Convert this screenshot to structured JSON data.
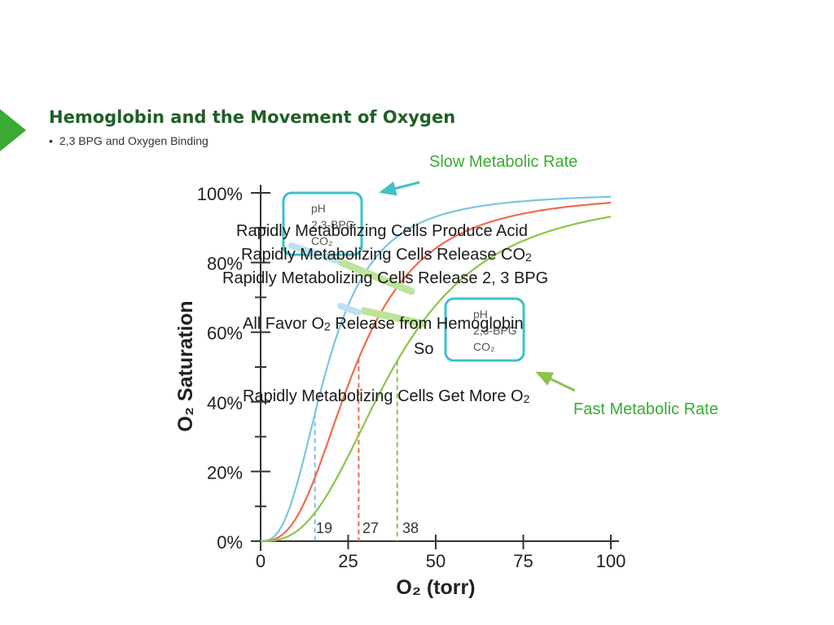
{
  "slide": {
    "title": "Hemoglobin and the Movement of Oxygen",
    "bullet": "2,3 BPG and Oxygen Binding",
    "overlay": {
      "slow_label": "Slow Metabolic Rate",
      "fast_label": "Fast Metabolic Rate",
      "line1": "Rapidly Metabolizing Cells Produce Acid",
      "line2": "Rapidly Metabolizing Cells Release CO",
      "line3": "Rapidly Metabolizing Cells Release 2, 3 BPG",
      "line4_a": "All Favor O",
      "line4_b": " Release from Hemoglobin",
      "line5": "So",
      "line6": "Rapidly Metabolizing Cells Get More O",
      "sub2": "2"
    }
  },
  "chart_data": {
    "type": "line",
    "xlabel": "O₂ (torr)",
    "ylabel": "O₂ Saturation",
    "xlim": [
      0,
      100
    ],
    "ylim": [
      0,
      100
    ],
    "x_ticks": [
      "0",
      "25",
      "50",
      "75",
      "100"
    ],
    "y_ticks": [
      "0%",
      "20%",
      "40%",
      "60%",
      "80%",
      "100%"
    ],
    "series": [
      {
        "color": "#7ec3e0",
        "p50": 19,
        "dashed_x": 15.5
      },
      {
        "color": "#ef6a4c",
        "p50": 27,
        "dashed_x": 28
      },
      {
        "color": "#8cc34a",
        "p50": 38,
        "dashed_x": 39
      }
    ],
    "p50_labels": [
      "19",
      "27",
      "38"
    ],
    "box_labels": {
      "top": {
        "line1": "pH",
        "line2": "2,3-BPG",
        "line3": "CO₂"
      },
      "bottom": {
        "line1": "pH",
        "line2": "2,3-BPG",
        "line3": "CO₂"
      }
    },
    "colors": {
      "axis": "#333333",
      "box": "#3ec0c7",
      "slow_arrow": "#3ec0c7",
      "fast_arrow": "#8cc34a"
    }
  }
}
